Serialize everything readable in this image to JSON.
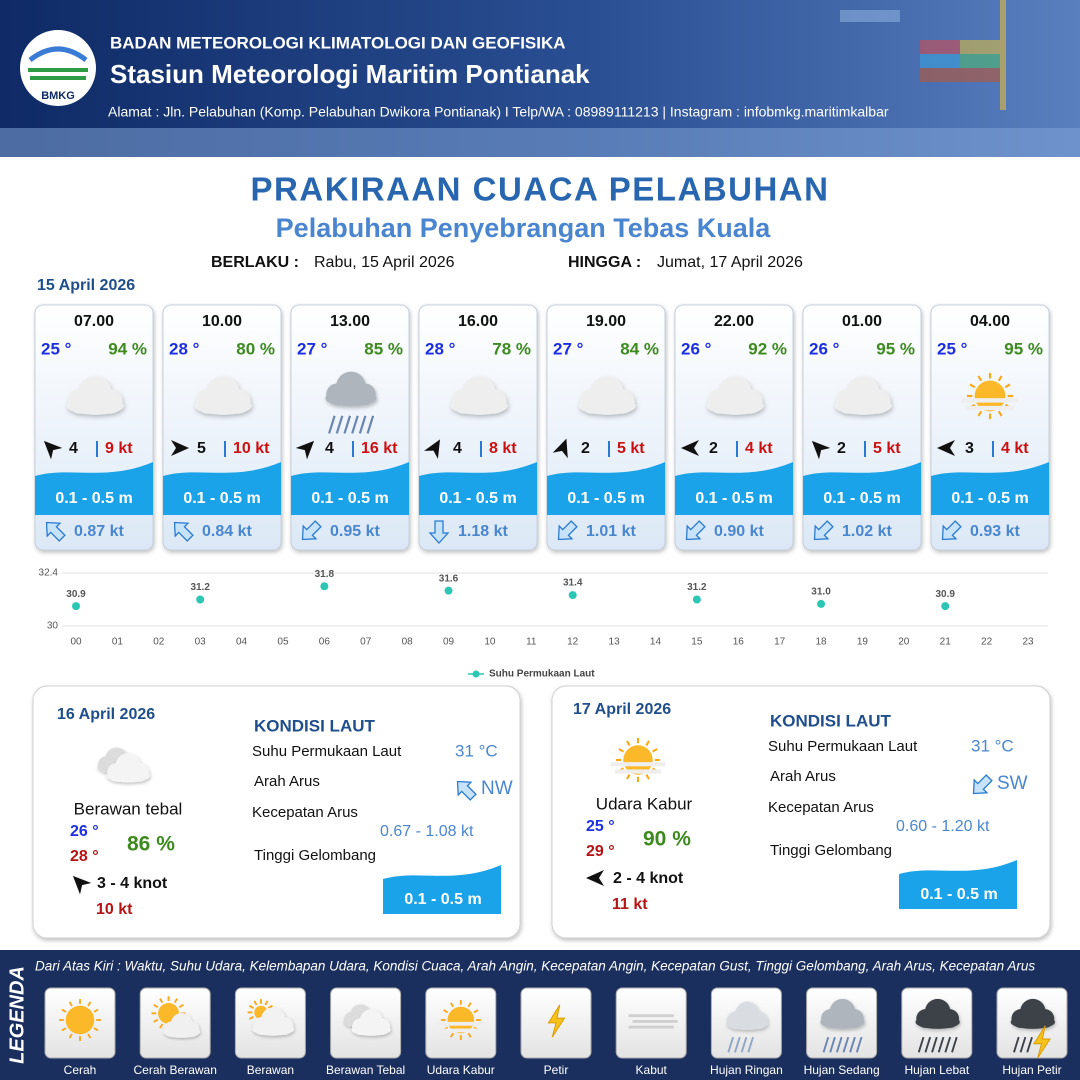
{
  "header": {
    "logo": "BMKG",
    "org": "BADAN METEOROLOGI KLIMATOLOGI DAN GEOFISIKA",
    "station": "Stasiun Meteorologi Maritim Pontianak",
    "address": "Alamat : Jln. Pelabuhan (Komp. Pelabuhan Dwikora Pontianak) I Telp/WA : 08989111213 | Instagram : infobmkg.maritimkalbar"
  },
  "title": "PRAKIRAAN CUACA PELABUHAN",
  "subtitle": "Pelabuhan Penyebrangan Tebas Kuala",
  "validity": {
    "from_label": "BERLAKU :",
    "from": "Rabu, 15 April 2026",
    "to_label": "HINGGA :",
    "to": "Jumat, 17 April 2026"
  },
  "day1": {
    "date": "15 April 2026",
    "cards": [
      {
        "time": "07.00",
        "temp": "25 °",
        "humidity": "94 %",
        "wind": "4",
        "gust": "9 kt",
        "wave": "0.1 - 0.5 m",
        "current": "0.87 kt"
      },
      {
        "time": "10.00",
        "temp": "28 °",
        "humidity": "80 %",
        "wind": "5",
        "gust": "10 kt",
        "wave": "0.1 - 0.5 m",
        "current": "0.84 kt"
      },
      {
        "time": "13.00",
        "temp": "27 °",
        "humidity": "85 %",
        "wind": "4",
        "gust": "16 kt",
        "wave": "0.1 - 0.5 m",
        "current": "0.95 kt"
      },
      {
        "time": "16.00",
        "temp": "28 °",
        "humidity": "78 %",
        "wind": "4",
        "gust": "8 kt",
        "wave": "0.1 - 0.5 m",
        "current": "1.18 kt"
      },
      {
        "time": "19.00",
        "temp": "27 °",
        "humidity": "84 %",
        "wind": "2",
        "gust": "5 kt",
        "wave": "0.1 - 0.5 m",
        "current": "1.01 kt"
      },
      {
        "time": "22.00",
        "temp": "26 °",
        "humidity": "92 %",
        "wind": "2",
        "gust": "4 kt",
        "wave": "0.1 - 0.5 m",
        "current": "0.90 kt"
      },
      {
        "time": "01.00",
        "temp": "26 °",
        "humidity": "95 %",
        "wind": "2",
        "gust": "5 kt",
        "wave": "0.1 - 0.5 m",
        "current": "1.02 kt"
      },
      {
        "time": "04.00",
        "temp": "25 °",
        "humidity": "95 %",
        "wind": "3",
        "gust": "4 kt",
        "wave": "0.1 - 0.5 m",
        "current": "0.93 kt"
      }
    ]
  },
  "chart_data": {
    "type": "scatter",
    "x": [
      0,
      3,
      6,
      9,
      12,
      15,
      18,
      21
    ],
    "xlim": [
      0,
      23
    ],
    "xticks": [
      {
        "value": 0,
        "label": "00"
      },
      {
        "value": 1,
        "label": "01"
      },
      {
        "value": 2,
        "label": "02"
      },
      {
        "value": 3,
        "label": "03"
      },
      {
        "value": 4,
        "label": "04"
      },
      {
        "value": 5,
        "label": "05"
      },
      {
        "value": 6,
        "label": "06"
      },
      {
        "value": 7,
        "label": "07"
      },
      {
        "value": 8,
        "label": "08"
      },
      {
        "value": 9,
        "label": "09"
      },
      10,
      11,
      12,
      13,
      14,
      15,
      16,
      17,
      18,
      19,
      20,
      21,
      22,
      23
    ],
    "ylim": [
      30,
      32.4
    ],
    "yticks": [
      30,
      32.4
    ],
    "grid": true,
    "legend": "bottom",
    "series": [
      {
        "name": "Suhu Permukaan Laut",
        "color": "#2cc7b4",
        "values": [
          30.9,
          31.2,
          31.8,
          31.6,
          31.4,
          31.2,
          31.0,
          30.9
        ],
        "value_labels": [
          "30.9",
          "31.2",
          "31.8",
          "31.6",
          "31.4",
          "31.2",
          "31.0",
          "30.9"
        ]
      }
    ]
  },
  "days": [
    {
      "date": "16 April 2026",
      "condition": "Berawan tebal",
      "temp_min": "26 °",
      "temp_max": "28 °",
      "humidity": "86 %",
      "wind": "3  - 4 knot",
      "gust": "10 kt",
      "sea": {
        "heading": "KONDISI LAUT",
        "sst_label": "Suhu Permukaan Laut",
        "sst": "31 °C",
        "dir_label": "Arah Arus",
        "dir": "NW",
        "speed_label": "Kecepatan Arus",
        "speed": "0.67 - 1.08 kt",
        "wave_label": "Tinggi Gelombang",
        "wave": "0.1 - 0.5 m"
      }
    },
    {
      "date": "17 April 2026",
      "condition": "Udara Kabur",
      "temp_min": "25 °",
      "temp_max": "29 °",
      "humidity": "90 %",
      "wind": "2 - 4 knot",
      "gust": "11 kt",
      "sea": {
        "heading": "KONDISI LAUT",
        "sst_label": "Suhu Permukaan Laut",
        "sst": "31 °C",
        "dir_label": "Arah Arus",
        "dir": "SW",
        "speed_label": "Kecepatan Arus",
        "speed": "0.60 - 1.20 kt",
        "wave_label": "Tinggi Gelombang",
        "wave": "0.1 - 0.5 m"
      }
    }
  ],
  "legend": {
    "title": "LEGENDA",
    "note": "Dari Atas Kiri : Waktu, Suhu Udara, Kelembapan Udara, Kondisi Cuaca, Arah Angin, Kecepatan Angin, Kecepatan Gust, Tinggi Gelombang, Arah Arus, Kecepatan Arus",
    "items": [
      "Cerah",
      "Cerah Berawan",
      "Berawan",
      "Berawan Tebal",
      "Udara Kabur",
      "Petir",
      "Kabut",
      "Hujan Ringan",
      "Hujan Sedang",
      "Hujan Lebat",
      "Hujan Petir"
    ]
  }
}
